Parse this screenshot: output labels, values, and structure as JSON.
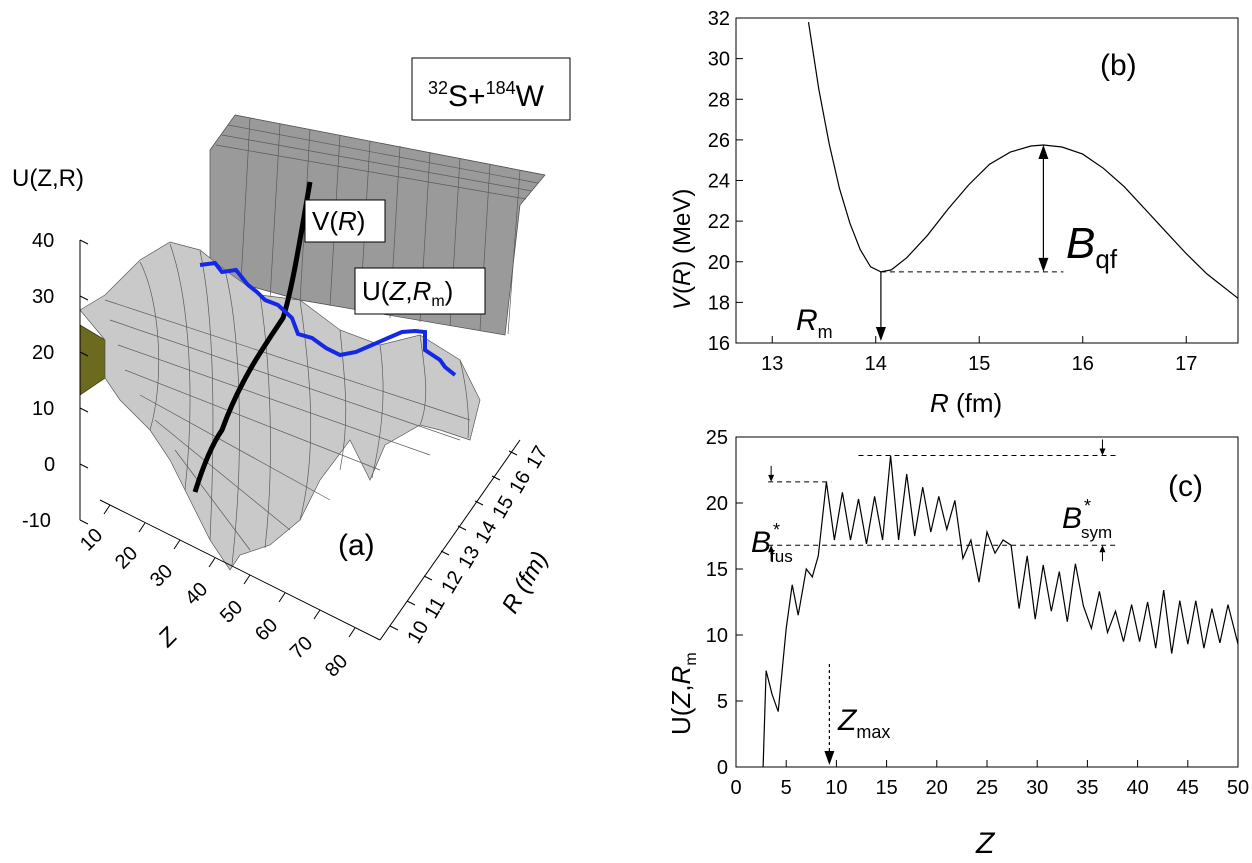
{
  "panel_a": {
    "label": "(a)",
    "reaction": {
      "a1": "32",
      "s1": "S",
      "plus": "+",
      "a2": "184",
      "s2": "W"
    },
    "z_axis_title": "U(Z,R)",
    "z_ticks": [
      "40",
      "30",
      "20",
      "10",
      "0",
      "-10"
    ],
    "z_tick_values": [
      40,
      30,
      20,
      10,
      0,
      -10
    ],
    "n_axis_title": "Z",
    "n_ticks": [
      "10",
      "20",
      "30",
      "40",
      "50",
      "60",
      "70",
      "80"
    ],
    "r_axis_title": "R (fm)",
    "r_ticks": [
      "10",
      "11",
      "12",
      "13",
      "14",
      "15",
      "16",
      "17"
    ],
    "vr_label": {
      "pre": "V(",
      "var": "R",
      "post": ")"
    },
    "uzr_label": {
      "pre": "U(",
      "z": "Z",
      "comma": ",",
      "r": "R",
      "sub": "m",
      "post": ")"
    },
    "colors": {
      "surface": "#c9c9c9",
      "mesh": "#5a5a5a",
      "vr_curve": "#000000",
      "uzr_curve": "#1428e6",
      "edge": "#6b6a1f"
    }
  },
  "chart_data": [
    {
      "id": "b",
      "type": "line",
      "title": "(b)",
      "xlabel": {
        "var": "R",
        "unit": " (fm)"
      },
      "ylabel": {
        "var": "V",
        "open": "(",
        "arg": "R",
        "close": ")",
        "unit": " (MeV)"
      },
      "xlim": [
        12.65,
        17.5
      ],
      "ylim": [
        16,
        32
      ],
      "xticks": [
        13,
        14,
        15,
        16,
        17
      ],
      "yticks": [
        16,
        18,
        20,
        22,
        24,
        26,
        28,
        30,
        32
      ],
      "series": [
        {
          "name": "V(R)",
          "x": [
            13.35,
            13.45,
            13.55,
            13.65,
            13.75,
            13.85,
            13.95,
            14.05,
            14.15,
            14.3,
            14.5,
            14.7,
            14.9,
            15.1,
            15.3,
            15.5,
            15.62,
            15.8,
            16.0,
            16.2,
            16.4,
            16.6,
            16.8,
            17.0,
            17.2,
            17.5
          ],
          "y": [
            31.8,
            28.5,
            25.8,
            23.6,
            21.9,
            20.6,
            19.75,
            19.5,
            19.6,
            20.2,
            21.3,
            22.6,
            23.8,
            24.8,
            25.4,
            25.7,
            25.75,
            25.65,
            25.3,
            24.6,
            23.7,
            22.6,
            21.5,
            20.4,
            19.4,
            18.2
          ]
        }
      ],
      "annotations": {
        "rm_label": {
          "main": "R",
          "sub": "m",
          "x": 14.05
        },
        "bqf_label": {
          "main": "B",
          "sub": "qf",
          "x": 15.62,
          "from": 19.5,
          "to": 25.75
        }
      }
    },
    {
      "id": "c",
      "type": "line",
      "title": "(c)",
      "xlabel": "Z",
      "ylabel": {
        "pre": "U(",
        "z": "Z",
        "comma": ",",
        "r": "R",
        "sub": "m"
      },
      "xlim": [
        0,
        50
      ],
      "ylim": [
        0,
        25
      ],
      "xticks": [
        0,
        5,
        10,
        15,
        20,
        25,
        30,
        35,
        40,
        45,
        50
      ],
      "yticks": [
        0,
        5,
        10,
        15,
        20,
        25
      ],
      "series": [
        {
          "name": "U(Z,Rm)",
          "x": [
            2.7,
            3.0,
            3.6,
            4.2,
            5.0,
            5.6,
            6.2,
            7.0,
            7.6,
            8.2,
            9.0,
            9.8,
            10.6,
            11.4,
            12.2,
            13.0,
            13.8,
            14.6,
            15.4,
            16.2,
            17.0,
            17.8,
            18.6,
            19.4,
            20.2,
            21.0,
            21.8,
            22.6,
            23.4,
            24.2,
            25.0,
            25.8,
            26.6,
            27.4,
            28.2,
            29.0,
            29.8,
            30.6,
            31.4,
            32.2,
            33.0,
            33.8,
            34.6,
            35.4,
            36.2,
            37.0,
            37.8,
            38.6,
            39.4,
            40.2,
            41.0,
            41.8,
            42.6,
            43.4,
            44.2,
            45.0,
            45.8,
            46.6,
            47.4,
            48.2,
            49.0,
            50.0
          ],
          "y": [
            0,
            7.3,
            5.5,
            4.2,
            10.5,
            13.8,
            11.5,
            15.0,
            14.4,
            16.0,
            21.6,
            17.2,
            20.8,
            17.2,
            20.3,
            16.9,
            20.5,
            17.2,
            23.6,
            17.2,
            22.2,
            17.5,
            21.2,
            17.8,
            20.5,
            18.0,
            20.2,
            15.8,
            17.2,
            14.0,
            17.8,
            16.2,
            17.2,
            16.8,
            12.0,
            16.0,
            11.2,
            15.3,
            11.8,
            14.8,
            11.0,
            15.4,
            12.2,
            10.5,
            13.3,
            10.2,
            11.8,
            9.5,
            12.3,
            9.5,
            12.5,
            9.0,
            13.4,
            8.6,
            12.6,
            9.3,
            12.6,
            9.0,
            12.0,
            9.4,
            12.3,
            9.3
          ]
        }
      ],
      "annotations": {
        "bfus_label": {
          "main": "B",
          "star": "*",
          "sub": "fus",
          "lower": 16.8,
          "upper": 21.6
        },
        "bsym_label": {
          "main": "B",
          "star": "*",
          "sub": "sym",
          "lower": 16.8,
          "upper": 23.6
        },
        "zmax_label": {
          "main": "Z",
          "sub": "max",
          "x": 9.3,
          "y_top": 7.8
        }
      }
    }
  ]
}
